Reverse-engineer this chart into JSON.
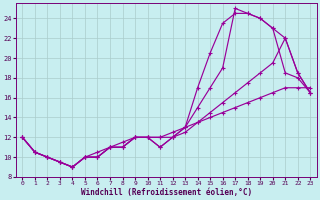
{
  "xlabel": "Windchill (Refroidissement éolien,°C)",
  "bg_color": "#c8eef0",
  "line_color": "#990099",
  "grid_color": "#aacccc",
  "xlim_min": -0.5,
  "xlim_max": 23.5,
  "ylim_min": 8,
  "ylim_max": 25.5,
  "xticks": [
    0,
    1,
    2,
    3,
    4,
    5,
    6,
    7,
    8,
    9,
    10,
    11,
    12,
    13,
    14,
    15,
    16,
    17,
    18,
    19,
    20,
    21,
    22,
    23
  ],
  "yticks": [
    8,
    10,
    12,
    14,
    16,
    18,
    20,
    22,
    24
  ],
  "curves": [
    {
      "x": [
        0,
        1,
        2,
        3,
        4,
        5,
        6,
        7,
        8,
        9,
        10,
        11,
        12,
        13,
        14,
        15,
        16,
        17,
        18,
        19,
        20,
        21,
        22,
        23
      ],
      "y": [
        12,
        10.5,
        10,
        9.5,
        9,
        10,
        10,
        11,
        11,
        12,
        12,
        11,
        12,
        13,
        15,
        17,
        19,
        25,
        24.5,
        24,
        23,
        18.5,
        18,
        16.5
      ]
    },
    {
      "x": [
        0,
        1,
        2,
        3,
        4,
        5,
        6,
        7,
        8,
        9,
        10,
        11,
        12,
        13,
        14,
        15,
        16,
        17,
        18,
        19,
        20,
        21,
        22,
        23
      ],
      "y": [
        12,
        10.5,
        10,
        9.5,
        9,
        10,
        10,
        11,
        11,
        12,
        12,
        11,
        12,
        13,
        17,
        20.5,
        23.5,
        24.5,
        24.5,
        24,
        23,
        22,
        18.5,
        16.5
      ]
    },
    {
      "x": [
        0,
        1,
        2,
        3,
        4,
        5,
        6,
        7,
        8,
        9,
        10,
        11,
        12,
        13,
        14,
        15,
        16,
        17,
        18,
        19,
        20,
        21,
        22,
        23
      ],
      "y": [
        12,
        10.5,
        10,
        9.5,
        9,
        10,
        10,
        11,
        11,
        12,
        12,
        12,
        12,
        12.5,
        13.5,
        14.5,
        15.5,
        16.5,
        17.5,
        18.5,
        19.5,
        22,
        18.5,
        16.5
      ]
    },
    {
      "x": [
        0,
        1,
        2,
        3,
        4,
        5,
        6,
        7,
        8,
        9,
        10,
        11,
        12,
        13,
        14,
        15,
        16,
        17,
        18,
        19,
        20,
        21,
        22,
        23
      ],
      "y": [
        12,
        10.5,
        10,
        9.5,
        9,
        10,
        10.5,
        11,
        11.5,
        12,
        12,
        12,
        12.5,
        13,
        13.5,
        14,
        14.5,
        15,
        15.5,
        16,
        16.5,
        17,
        17,
        17
      ]
    }
  ]
}
